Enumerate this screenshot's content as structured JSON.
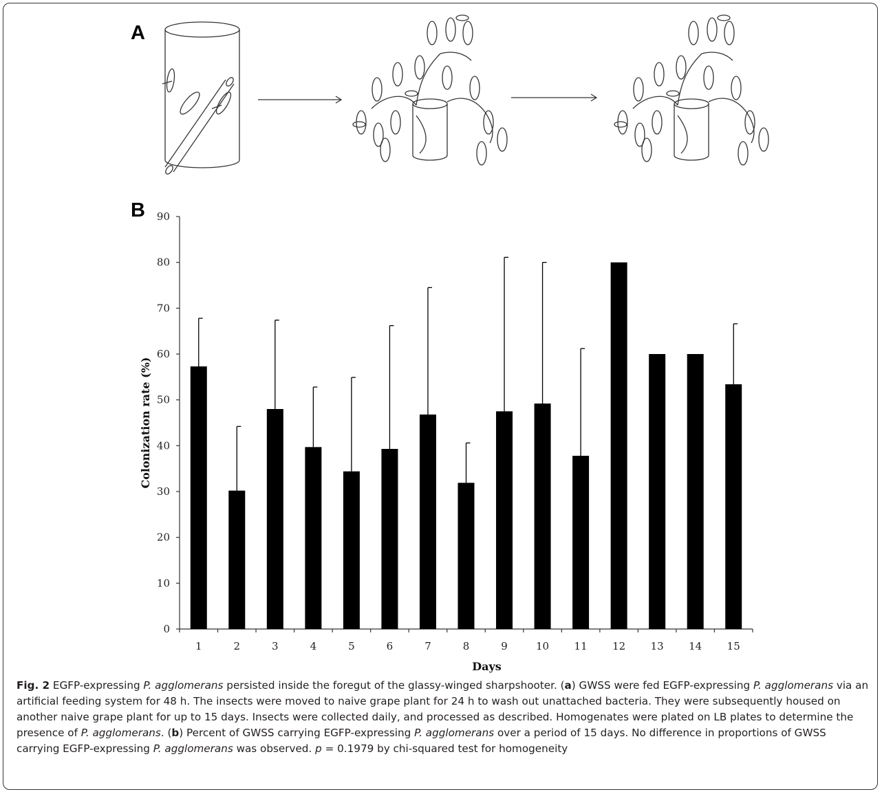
{
  "panels": {
    "a_label": "A",
    "b_label": "B"
  },
  "chart_data": {
    "type": "bar",
    "xlabel": "Days",
    "ylabel": "Colonization rate (%)",
    "ylim": [
      0,
      90
    ],
    "yticks": [
      0,
      10,
      20,
      30,
      40,
      50,
      60,
      70,
      80,
      90
    ],
    "categories": [
      "1",
      "2",
      "3",
      "4",
      "5",
      "6",
      "7",
      "8",
      "9",
      "10",
      "11",
      "12",
      "13",
      "14",
      "15"
    ],
    "values": [
      57.3,
      30.2,
      48.0,
      39.7,
      34.4,
      39.3,
      46.8,
      31.9,
      47.5,
      49.2,
      37.8,
      80.0,
      60.0,
      60.0,
      53.4
    ],
    "error_upper": [
      67.8,
      44.2,
      67.4,
      52.8,
      54.9,
      66.2,
      74.5,
      40.6,
      81.1,
      80.0,
      61.2,
      null,
      null,
      null,
      66.6
    ],
    "bar_color": "#000000",
    "grid": false
  },
  "caption": {
    "fig_label": "Fig. 2",
    "s1": " EGFP-expressing ",
    "it1": "P. agglomerans",
    "s2": " persisted inside the foregut of the glassy-winged sharpshooter. (",
    "ba": "a",
    "s3": ") GWSS were fed EGFP-expressing ",
    "it2": "P. agglomerans",
    "s4": " via an artificial feeding system for 48 h. The insects were moved to naive grape plant for 24 h to wash out unattached bacteria. They were subsequently housed on another naive grape plant for up to 15 days. Insects were collected daily, and processed as described. Homogenates were plated on LB plates to determine the presence of ",
    "it3": "P. agglomerans",
    "s5": ". (",
    "bb": "b",
    "s6": ") Percent of GWSS carrying EGFP-expressing ",
    "it4": "P. agglomerans",
    "s7": " over a period of 15 days. No difference in proportions of GWSS carrying EGFP-expressing ",
    "it5": "P. agglomerans",
    "s8": " was observed. ",
    "itp": "p",
    "s9": " = 0.1979 by chi-squared test for homogeneity"
  }
}
